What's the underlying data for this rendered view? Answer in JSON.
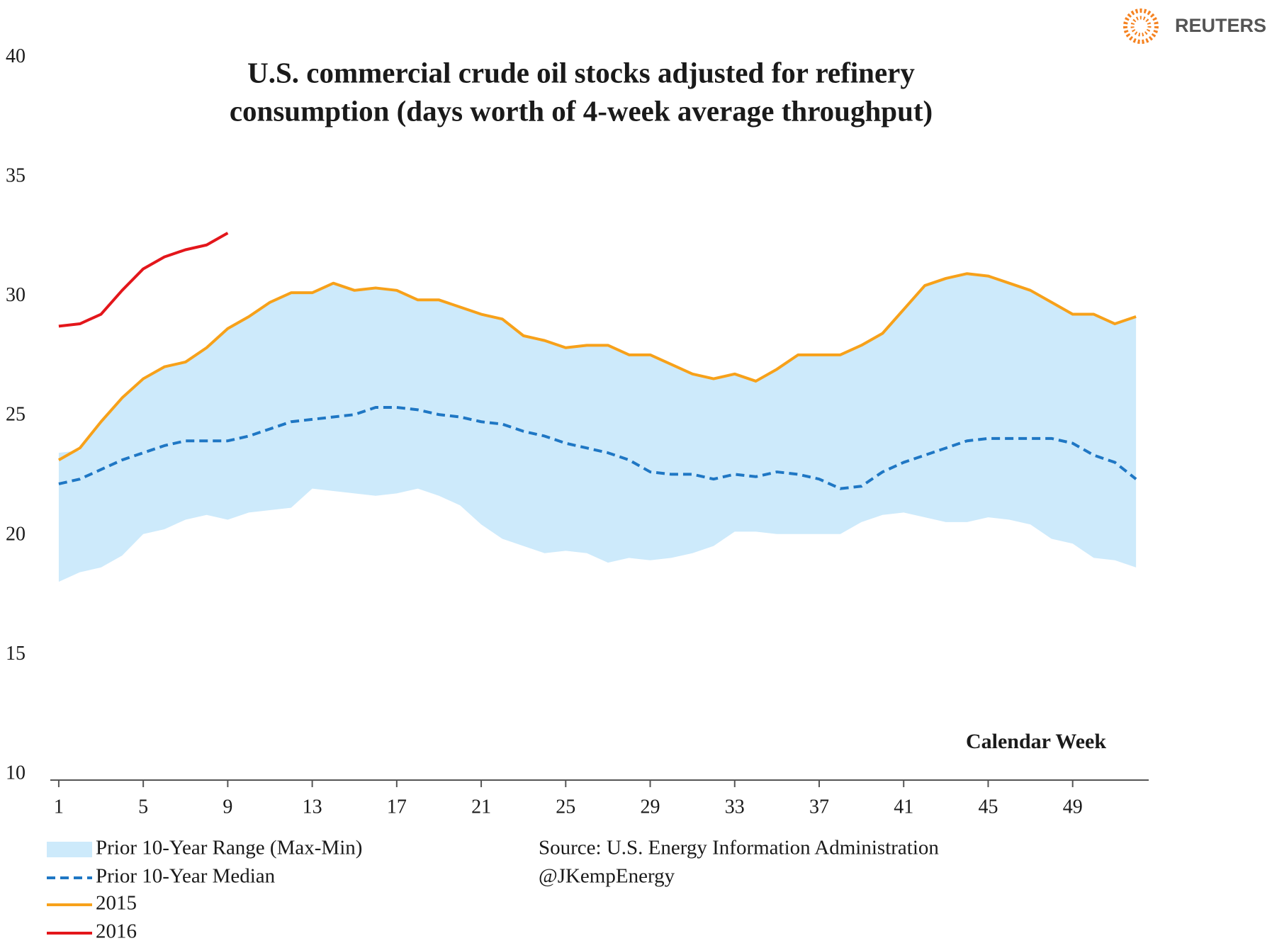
{
  "logo": "REUTERS",
  "chart_data": {
    "type": "line",
    "title": [
      "U.S. commercial crude oil stocks adjusted for refinery",
      "consumption (days worth of 4-week average throughput)"
    ],
    "x_label": "Calendar Week",
    "source": [
      "Source:  U.S. Energy Information Administration",
      "@JKempEnergy"
    ],
    "x": [
      1,
      2,
      3,
      4,
      5,
      6,
      7,
      8,
      9,
      10,
      11,
      12,
      13,
      14,
      15,
      16,
      17,
      18,
      19,
      20,
      21,
      22,
      23,
      24,
      25,
      26,
      27,
      28,
      29,
      30,
      31,
      32,
      33,
      34,
      35,
      36,
      37,
      38,
      39,
      40,
      41,
      42,
      43,
      44,
      45,
      46,
      47,
      48,
      49,
      50,
      51,
      52
    ],
    "xlim": [
      0.6,
      52.6
    ],
    "xticks": [
      1,
      5,
      9,
      13,
      17,
      21,
      25,
      29,
      33,
      37,
      41,
      45,
      49
    ],
    "ylim": [
      10,
      40
    ],
    "yticks": [
      10,
      15,
      20,
      25,
      30,
      35,
      40
    ],
    "range": {
      "name": "Prior 10-Year Range (Max-Min)",
      "color": "#cdeafb",
      "max": [
        23.7,
        23.8,
        25.0,
        26.0,
        26.8,
        27.3,
        27.5,
        28.1,
        28.9,
        29.4,
        30.0,
        30.4,
        30.4,
        30.8,
        30.5,
        30.6,
        30.5,
        30.1,
        30.1,
        29.8,
        29.5,
        29.3,
        28.6,
        28.4,
        28.1,
        28.2,
        28.2,
        27.8,
        27.8,
        27.4,
        27.0,
        26.8,
        27.0,
        26.7,
        27.2,
        27.8,
        27.8,
        27.8,
        28.2,
        28.7,
        29.7,
        30.7,
        31.0,
        31.2,
        31.1,
        30.8,
        30.5,
        30.0,
        29.5,
        29.5,
        29.1,
        29.4
      ],
      "min": [
        18.3,
        18.7,
        18.9,
        19.4,
        20.3,
        20.5,
        20.9,
        21.1,
        20.9,
        21.2,
        21.3,
        21.4,
        22.2,
        22.1,
        22.0,
        21.9,
        22.0,
        22.2,
        21.9,
        21.5,
        20.7,
        20.1,
        19.8,
        19.5,
        19.6,
        19.5,
        19.1,
        19.3,
        19.2,
        19.3,
        19.5,
        19.8,
        20.4,
        20.4,
        20.3,
        20.3,
        20.3,
        20.3,
        20.8,
        21.1,
        21.2,
        21.0,
        20.8,
        20.8,
        21.0,
        20.9,
        20.7,
        20.1,
        19.9,
        19.3,
        19.2,
        18.9
      ]
    },
    "series": [
      {
        "name": "Prior 10-Year Median",
        "color": "#1f77c4",
        "dashed": true,
        "values": [
          22.4,
          22.6,
          23.0,
          23.4,
          23.7,
          24.0,
          24.2,
          24.2,
          24.2,
          24.4,
          24.7,
          25.0,
          25.1,
          25.2,
          25.3,
          25.6,
          25.6,
          25.5,
          25.3,
          25.2,
          25.0,
          24.9,
          24.6,
          24.4,
          24.1,
          23.9,
          23.7,
          23.4,
          22.9,
          22.8,
          22.8,
          22.6,
          22.8,
          22.7,
          22.9,
          22.8,
          22.6,
          22.2,
          22.3,
          22.9,
          23.3,
          23.6,
          23.9,
          24.2,
          24.3,
          24.3,
          24.3,
          24.3,
          24.1,
          23.6,
          23.3,
          22.6
        ]
      },
      {
        "name": "2015",
        "color": "#f7a11a",
        "dashed": false,
        "values": [
          23.4,
          23.9,
          25.0,
          26.0,
          26.8,
          27.3,
          27.5,
          28.1,
          28.9,
          29.4,
          30.0,
          30.4,
          30.4,
          30.8,
          30.5,
          30.6,
          30.5,
          30.1,
          30.1,
          29.8,
          29.5,
          29.3,
          28.6,
          28.4,
          28.1,
          28.2,
          28.2,
          27.8,
          27.8,
          27.4,
          27.0,
          26.8,
          27.0,
          26.7,
          27.2,
          27.8,
          27.8,
          27.8,
          28.2,
          28.7,
          29.7,
          30.7,
          31.0,
          31.2,
          31.1,
          30.8,
          30.5,
          30.0,
          29.5,
          29.5,
          29.1,
          29.4
        ]
      },
      {
        "name": "2016",
        "color": "#e3161b",
        "dashed": false,
        "values": [
          29.0,
          29.1,
          29.5,
          30.5,
          31.4,
          31.9,
          32.2,
          32.4,
          32.9,
          null,
          null,
          null,
          null,
          null,
          null,
          null,
          null,
          null,
          null,
          null,
          null,
          null,
          null,
          null,
          null,
          null,
          null,
          null,
          null,
          null,
          null,
          null,
          null,
          null,
          null,
          null,
          null,
          null,
          null,
          null,
          null,
          null,
          null,
          null,
          null,
          null,
          null,
          null,
          null,
          null,
          null,
          null
        ]
      }
    ]
  }
}
